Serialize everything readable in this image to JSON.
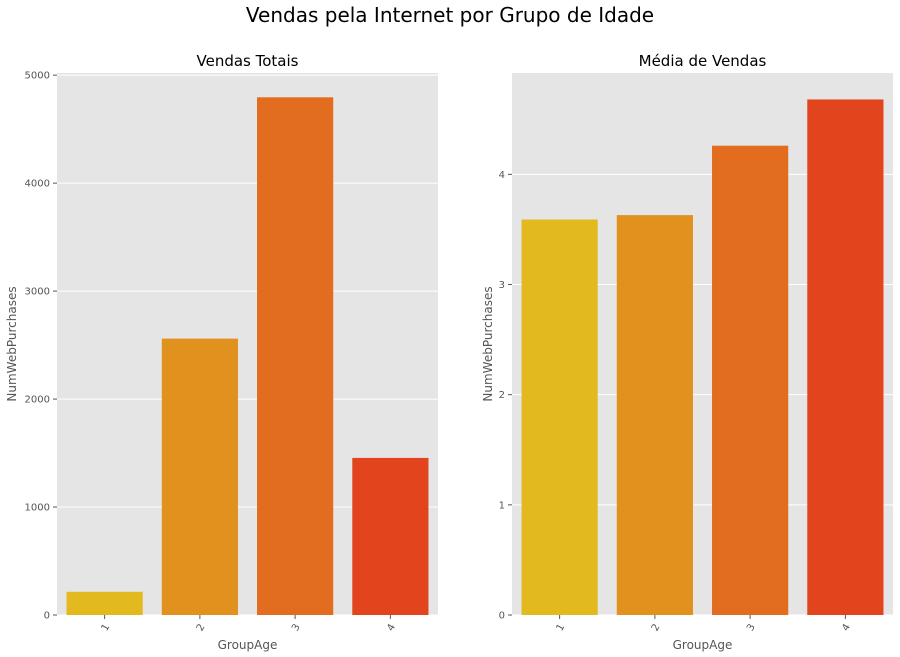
{
  "suptitle": "Vendas pela Internet por Grupo de Idade",
  "colors": {
    "panel_bg": "#e5e5e5",
    "grid": "#ffffff",
    "tick_text": "#555555",
    "bars": [
      "#e2b91e",
      "#e1911e",
      "#e26d1e",
      "#e2451e"
    ]
  },
  "chart_data": [
    {
      "type": "bar",
      "title": "Vendas Totais",
      "xlabel": "GroupAge",
      "ylabel": "NumWebPurchases",
      "categories": [
        "1",
        "2",
        "3",
        "4"
      ],
      "values": [
        215,
        2560,
        4795,
        1455
      ],
      "ylim": [
        0,
        5020
      ],
      "yticks": [
        0,
        1000,
        2000,
        3000,
        4000,
        5000
      ],
      "grid": true,
      "legend": "none"
    },
    {
      "type": "bar",
      "title": "Média de Vendas",
      "xlabel": "GroupAge",
      "ylabel": "NumWebPurchases",
      "categories": [
        "1",
        "2",
        "3",
        "4"
      ],
      "values": [
        3.59,
        3.63,
        4.26,
        4.68
      ],
      "ylim": [
        0,
        4.92
      ],
      "yticks": [
        0,
        1,
        2,
        3,
        4
      ],
      "grid": true,
      "legend": "none"
    }
  ]
}
